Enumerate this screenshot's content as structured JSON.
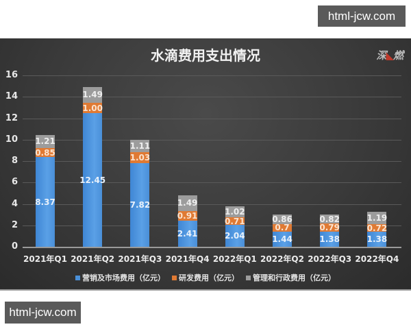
{
  "watermarks": {
    "top": "html-jcw.com",
    "bottom": "html-jcw.com"
  },
  "logo": {
    "left": "深",
    "right": "燃"
  },
  "colors": {
    "marketing": "#4a90d9",
    "rnd": "#e07a33",
    "admin": "#9c9c9c",
    "background": "#3a3a3a"
  },
  "chart_data": {
    "type": "bar",
    "stacked": true,
    "title": "水滴费用支出情况",
    "xlabel": "",
    "ylabel": "",
    "ylim": [
      0,
      16
    ],
    "yticks": [
      "0",
      "2",
      "4",
      "6",
      "8",
      "10",
      "12",
      "14",
      "16"
    ],
    "grid": true,
    "legend_position": "bottom",
    "categories": [
      "2021年Q1",
      "2021年Q2",
      "2021年Q3",
      "2021年Q4",
      "2022年Q1",
      "2022年Q2",
      "2022年Q3",
      "2022年Q4"
    ],
    "series": [
      {
        "name": "营销及市场费用（亿元）",
        "values": [
          8.37,
          12.45,
          7.82,
          2.41,
          2.04,
          1.44,
          1.38,
          1.38
        ],
        "labels": [
          "8.37",
          "12.45",
          "7.82",
          "2.41",
          "2.04",
          "1.44",
          "1.38",
          "1.38"
        ]
      },
      {
        "name": "研发费用（亿元）",
        "values": [
          0.85,
          1.0,
          1.03,
          0.91,
          0.71,
          0.7,
          0.79,
          0.72
        ],
        "labels": [
          "0.85",
          "1.00",
          "1.03",
          "0.91",
          "0.71",
          "0.7",
          "0.79",
          "0.72"
        ]
      },
      {
        "name": "管理和行政费用（亿元）",
        "values": [
          1.21,
          1.49,
          1.11,
          1.49,
          1.02,
          0.86,
          0.82,
          1.19
        ],
        "labels": [
          "1.21",
          "1.49",
          "1.11",
          "1.49",
          "1.02",
          "0.86",
          "0.82",
          "1.19"
        ]
      }
    ]
  }
}
